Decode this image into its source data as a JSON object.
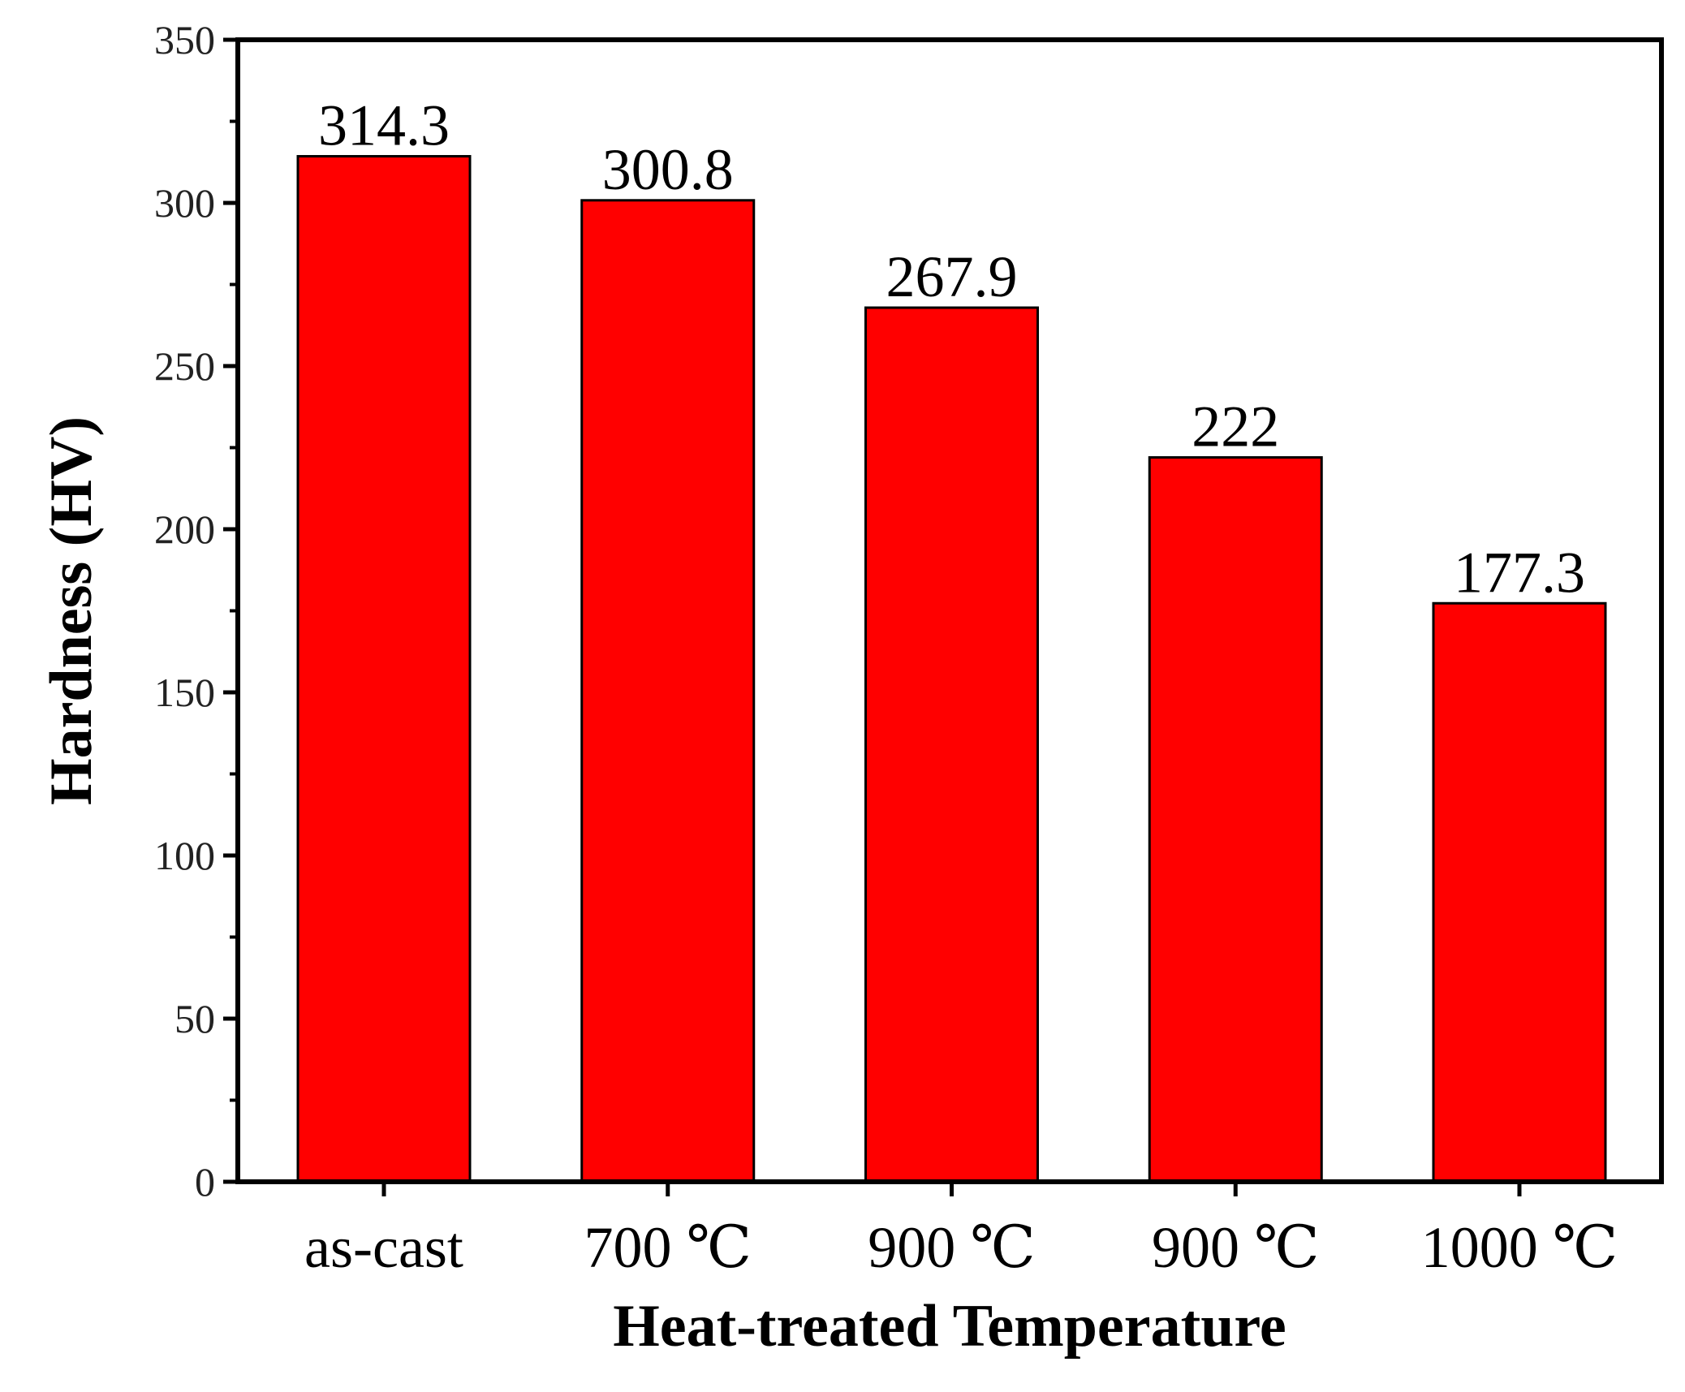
{
  "chart_data": {
    "type": "bar",
    "title": "",
    "xlabel": "Heat-treated Temperature",
    "ylabel": "Hardness (HV)",
    "categories": [
      "as-cast",
      "700 ℃",
      "900 ℃",
      "900 ℃",
      "1000 ℃"
    ],
    "values": [
      314.3,
      300.8,
      267.9,
      222,
      177.3
    ],
    "data_labels": [
      "314.3",
      "300.8",
      "267.9",
      "222",
      "177.3"
    ],
    "ylim": [
      0,
      350
    ],
    "yticks": [
      0,
      50,
      100,
      150,
      200,
      250,
      300,
      350
    ],
    "ytick_labels": [
      "0",
      "50",
      "100",
      "150",
      "200",
      "250",
      "300",
      "350"
    ],
    "grid": false,
    "bar_color": "#ff0000",
    "bar_edge_color": "#000000"
  }
}
